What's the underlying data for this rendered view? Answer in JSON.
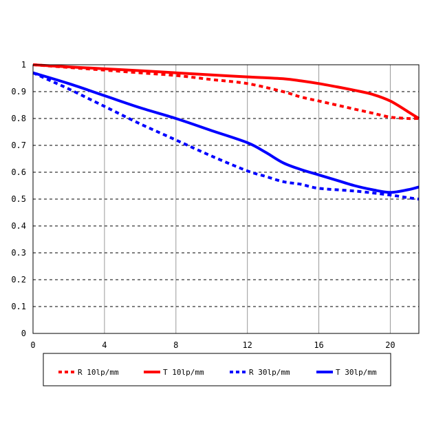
{
  "chart_data": {
    "type": "line",
    "title": "",
    "xlabel": "",
    "ylabel": "",
    "xlim": [
      0,
      21.6
    ],
    "ylim": [
      0,
      1
    ],
    "x_ticks": [
      "0",
      "4",
      "8",
      "12",
      "16",
      "20"
    ],
    "y_ticks": [
      "0",
      "0.1",
      "0.2",
      "0.3",
      "0.4",
      "0.5",
      "0.6",
      "0.7",
      "0.8",
      "0.9",
      "1"
    ],
    "grid": {
      "vertical": "solid-gray",
      "horizontal": "dashed-black"
    },
    "legend_position": "bottom",
    "series": [
      {
        "name": "R 10lp/mm",
        "color": "#ff0000",
        "style": "dotted",
        "points": [
          [
            0,
            1.0
          ],
          [
            2,
            0.99
          ],
          [
            4,
            0.98
          ],
          [
            6,
            0.97
          ],
          [
            8,
            0.96
          ],
          [
            10,
            0.945
          ],
          [
            12,
            0.93
          ],
          [
            14,
            0.9
          ],
          [
            15,
            0.88
          ],
          [
            16,
            0.865
          ],
          [
            17,
            0.85
          ],
          [
            18,
            0.835
          ],
          [
            19,
            0.82
          ],
          [
            20,
            0.805
          ],
          [
            21,
            0.8
          ],
          [
            21.6,
            0.8
          ]
        ]
      },
      {
        "name": "T 10lp/mm",
        "color": "#ff0000",
        "style": "solid",
        "points": [
          [
            0,
            1.0
          ],
          [
            2,
            0.992
          ],
          [
            4,
            0.985
          ],
          [
            6,
            0.978
          ],
          [
            8,
            0.97
          ],
          [
            10,
            0.962
          ],
          [
            12,
            0.955
          ],
          [
            14,
            0.948
          ],
          [
            15,
            0.94
          ],
          [
            16,
            0.93
          ],
          [
            17,
            0.918
          ],
          [
            18,
            0.905
          ],
          [
            19,
            0.89
          ],
          [
            20,
            0.865
          ],
          [
            21,
            0.825
          ],
          [
            21.6,
            0.8
          ]
        ]
      },
      {
        "name": "R 30lp/mm",
        "color": "#0000ff",
        "style": "dotted",
        "points": [
          [
            0,
            0.97
          ],
          [
            1,
            0.94
          ],
          [
            2,
            0.91
          ],
          [
            4,
            0.845
          ],
          [
            6,
            0.78
          ],
          [
            8,
            0.72
          ],
          [
            10,
            0.66
          ],
          [
            12,
            0.605
          ],
          [
            13,
            0.585
          ],
          [
            14,
            0.565
          ],
          [
            15,
            0.555
          ],
          [
            16,
            0.54
          ],
          [
            18,
            0.53
          ],
          [
            20,
            0.515
          ],
          [
            21,
            0.505
          ],
          [
            21.6,
            0.5
          ]
        ]
      },
      {
        "name": "T 30lp/mm",
        "color": "#0000ff",
        "style": "solid",
        "points": [
          [
            0,
            0.97
          ],
          [
            2,
            0.93
          ],
          [
            4,
            0.885
          ],
          [
            6,
            0.84
          ],
          [
            8,
            0.8
          ],
          [
            10,
            0.755
          ],
          [
            12,
            0.71
          ],
          [
            13,
            0.675
          ],
          [
            14,
            0.635
          ],
          [
            15,
            0.61
          ],
          [
            16,
            0.59
          ],
          [
            17,
            0.57
          ],
          [
            18,
            0.55
          ],
          [
            19,
            0.535
          ],
          [
            20,
            0.525
          ],
          [
            21,
            0.535
          ],
          [
            21.6,
            0.545
          ]
        ]
      }
    ]
  }
}
